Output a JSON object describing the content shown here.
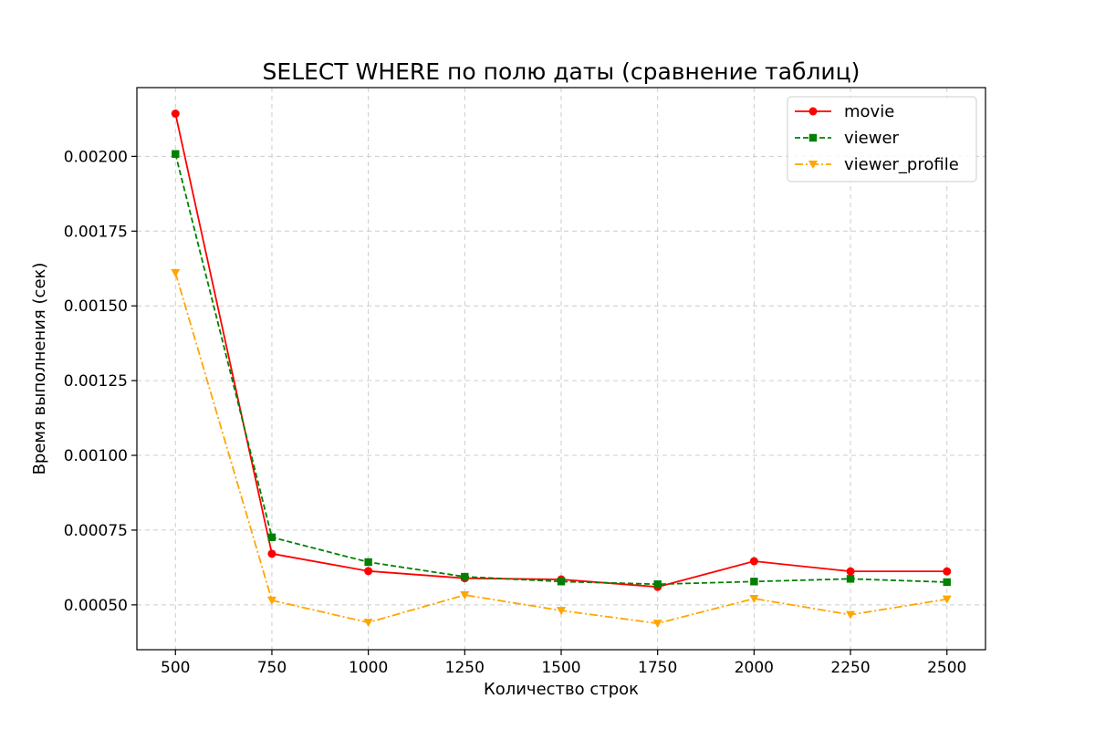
{
  "chart_data": {
    "type": "line",
    "title": "SELECT WHERE по полю даты (сравнение таблиц)",
    "xlabel": "Количество строк",
    "ylabel": "Время выполнения (сек)",
    "x": [
      500,
      750,
      1000,
      1250,
      1500,
      1750,
      2000,
      2250,
      2500
    ],
    "xlim": [
      400,
      2600
    ],
    "ylim": [
      0.00035,
      0.00223
    ],
    "xticks": [
      "500",
      "750",
      "1000",
      "1250",
      "1500",
      "1750",
      "2000",
      "2250",
      "2500"
    ],
    "yticks": [
      "0.00050",
      "0.00075",
      "0.00100",
      "0.00125",
      "0.00150",
      "0.00175",
      "0.00200"
    ],
    "grid": true,
    "legend_position": "top-right",
    "series": [
      {
        "name": "movie",
        "color": "#ff0000",
        "line_style": "solid",
        "marker": "circle",
        "values": [
          0.002143,
          0.000671,
          0.000613,
          0.000589,
          0.000585,
          0.00056,
          0.000646,
          0.000612,
          0.000612
        ]
      },
      {
        "name": "viewer",
        "color": "#008000",
        "line_style": "dashed",
        "marker": "square",
        "values": [
          0.002008,
          0.000726,
          0.000643,
          0.000594,
          0.000578,
          0.000569,
          0.000578,
          0.000587,
          0.000576
        ]
      },
      {
        "name": "viewer_profile",
        "color": "#ffa500",
        "line_style": "dashdot",
        "marker": "triangle-down",
        "values": [
          0.001611,
          0.000515,
          0.000441,
          0.000533,
          0.000481,
          0.000438,
          0.000521,
          0.000467,
          0.000519
        ]
      }
    ]
  }
}
